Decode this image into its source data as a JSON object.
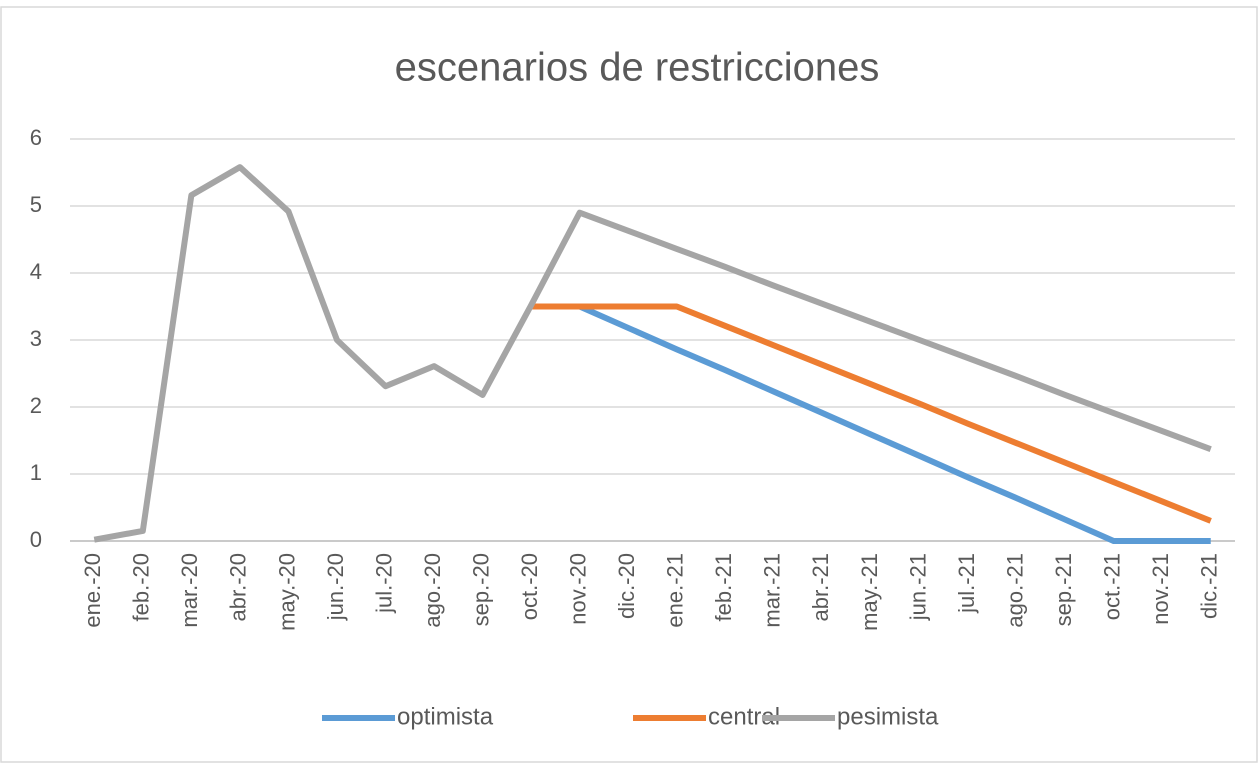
{
  "chart_data": {
    "type": "line",
    "title": "escenarios de restricciones",
    "categories": [
      "ene.-20",
      "feb.-20",
      "mar.-20",
      "abr.-20",
      "may.-20",
      "jun.-20",
      "jul.-20",
      "ago.-20",
      "sep.-20",
      "oct.-20",
      "nov.-20",
      "dic.-20",
      "ene.-21",
      "feb.-21",
      "mar.-21",
      "abr.-21",
      "may.-21",
      "jun.-21",
      "jul.-21",
      "ago.-21",
      "sep.-21",
      "oct.-21",
      "nov.-21",
      "dic.-21"
    ],
    "series": [
      {
        "name": "optimista",
        "color": "#5b9bd5",
        "values": [
          null,
          null,
          null,
          null,
          null,
          null,
          null,
          null,
          null,
          3.5,
          3.5,
          3.18,
          2.86,
          2.55,
          2.23,
          1.91,
          1.59,
          1.27,
          0.95,
          0.64,
          0.32,
          0,
          0,
          0
        ]
      },
      {
        "name": "central",
        "color": "#ed7d31",
        "values": [
          null,
          null,
          null,
          null,
          null,
          null,
          null,
          null,
          null,
          3.5,
          3.5,
          3.5,
          3.5,
          3.21,
          2.92,
          2.63,
          2.34,
          2.05,
          1.75,
          1.46,
          1.17,
          0.88,
          0.59,
          0.3
        ]
      },
      {
        "name": "pesimista",
        "color": "#a5a5a5",
        "values": [
          0.02,
          0.15,
          5.16,
          5.58,
          4.92,
          3.0,
          2.31,
          2.61,
          2.18,
          3.52,
          4.9,
          4.63,
          4.36,
          4.09,
          3.81,
          3.54,
          3.27,
          3.0,
          2.73,
          2.46,
          2.18,
          1.91,
          1.64,
          1.37
        ]
      }
    ],
    "ylim": [
      0,
      6
    ],
    "yticks": [
      0,
      1,
      2,
      3,
      4,
      5,
      6
    ],
    "grid": true
  }
}
